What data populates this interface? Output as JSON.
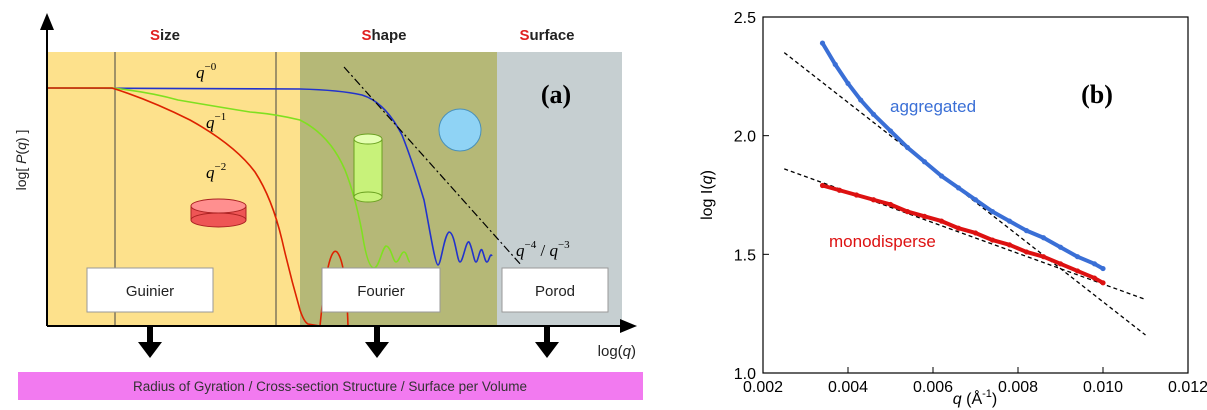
{
  "panel_a": {
    "regions": [
      {
        "first": "S",
        "rest": "ize"
      },
      {
        "first": "S",
        "rest": "hape"
      },
      {
        "first": "S",
        "rest": "urface"
      }
    ],
    "label": "(a)",
    "ylabel_pre": "log[ ",
    "ylabel_var": "P",
    "ylabel_paren": "(",
    "ylabel_q": "q",
    "ylabel_post": ") ]",
    "xlabel_pre": "log(",
    "xlabel_var": "q",
    "xlabel_post": ")",
    "curve_labels": {
      "q0_base": "q",
      "q0_exp": "−0",
      "q1_base": "q",
      "q1_exp": "−1",
      "q2_base": "q",
      "q2_exp": "−2",
      "q43_base1": "q",
      "q43_exp1": "−4",
      "q43_sep": " / ",
      "q43_base2": "q",
      "q43_exp2": "−3"
    },
    "boxes": [
      "Guinier",
      "Fourier",
      "Porod"
    ],
    "banner": "Radius of Gyration / Cross-section Structure / Surface per Volume",
    "colors": {
      "size_bg": "#fde18c",
      "shape_bg": "#b5b877",
      "surface_bg": "#c6cfd1",
      "accent": "#e02020",
      "banner": "#f27af0",
      "q0": "#2233cc",
      "q1": "#7fe020",
      "q2": "#dd2200"
    }
  },
  "chart_data": {
    "type": "scatter",
    "title": "",
    "label": "(b)",
    "xlabel_var": "q",
    "xlabel_unit_pre": " (Å",
    "xlabel_unit_exp": "-1",
    "xlabel_unit_post": ")",
    "ylabel_pre": "log I(",
    "ylabel_var": "q",
    "ylabel_post": ")",
    "xlim": [
      0.002,
      0.012
    ],
    "ylim": [
      1.0,
      2.5
    ],
    "xticks": [
      0.002,
      0.004,
      0.006,
      0.008,
      0.01,
      0.012
    ],
    "xtick_labels": [
      "0.002",
      "0.004",
      "0.006",
      "0.008",
      "0.010",
      "0.012"
    ],
    "yticks": [
      1.0,
      1.5,
      2.0,
      2.5
    ],
    "ytick_labels": [
      "1.0",
      "1.5",
      "2.0",
      "2.5"
    ],
    "series": [
      {
        "name": "aggregated",
        "color": "#3a6fd6",
        "x": [
          0.0034,
          0.0037,
          0.004,
          0.0043,
          0.0046,
          0.005,
          0.0054,
          0.0058,
          0.0062,
          0.0066,
          0.007,
          0.0074,
          0.0078,
          0.0082,
          0.0086,
          0.009,
          0.0094,
          0.0098,
          0.01
        ],
        "y": [
          2.39,
          2.3,
          2.22,
          2.15,
          2.09,
          2.02,
          1.95,
          1.89,
          1.83,
          1.78,
          1.73,
          1.68,
          1.64,
          1.6,
          1.57,
          1.53,
          1.49,
          1.46,
          1.44
        ]
      },
      {
        "name": "monodisperse",
        "color": "#dd1111",
        "x": [
          0.0034,
          0.0038,
          0.0042,
          0.0046,
          0.005,
          0.0054,
          0.0058,
          0.0062,
          0.0066,
          0.007,
          0.0074,
          0.0078,
          0.0082,
          0.0086,
          0.009,
          0.0094,
          0.0098,
          0.01
        ],
        "y": [
          1.79,
          1.77,
          1.75,
          1.73,
          1.71,
          1.68,
          1.66,
          1.64,
          1.61,
          1.59,
          1.56,
          1.54,
          1.51,
          1.49,
          1.46,
          1.43,
          1.4,
          1.38
        ]
      }
    ],
    "fit_lines": [
      {
        "x": [
          0.0025,
          0.011
        ],
        "y": [
          2.35,
          1.16
        ]
      },
      {
        "x": [
          0.0025,
          0.011
        ],
        "y": [
          1.86,
          1.31
        ]
      }
    ]
  }
}
